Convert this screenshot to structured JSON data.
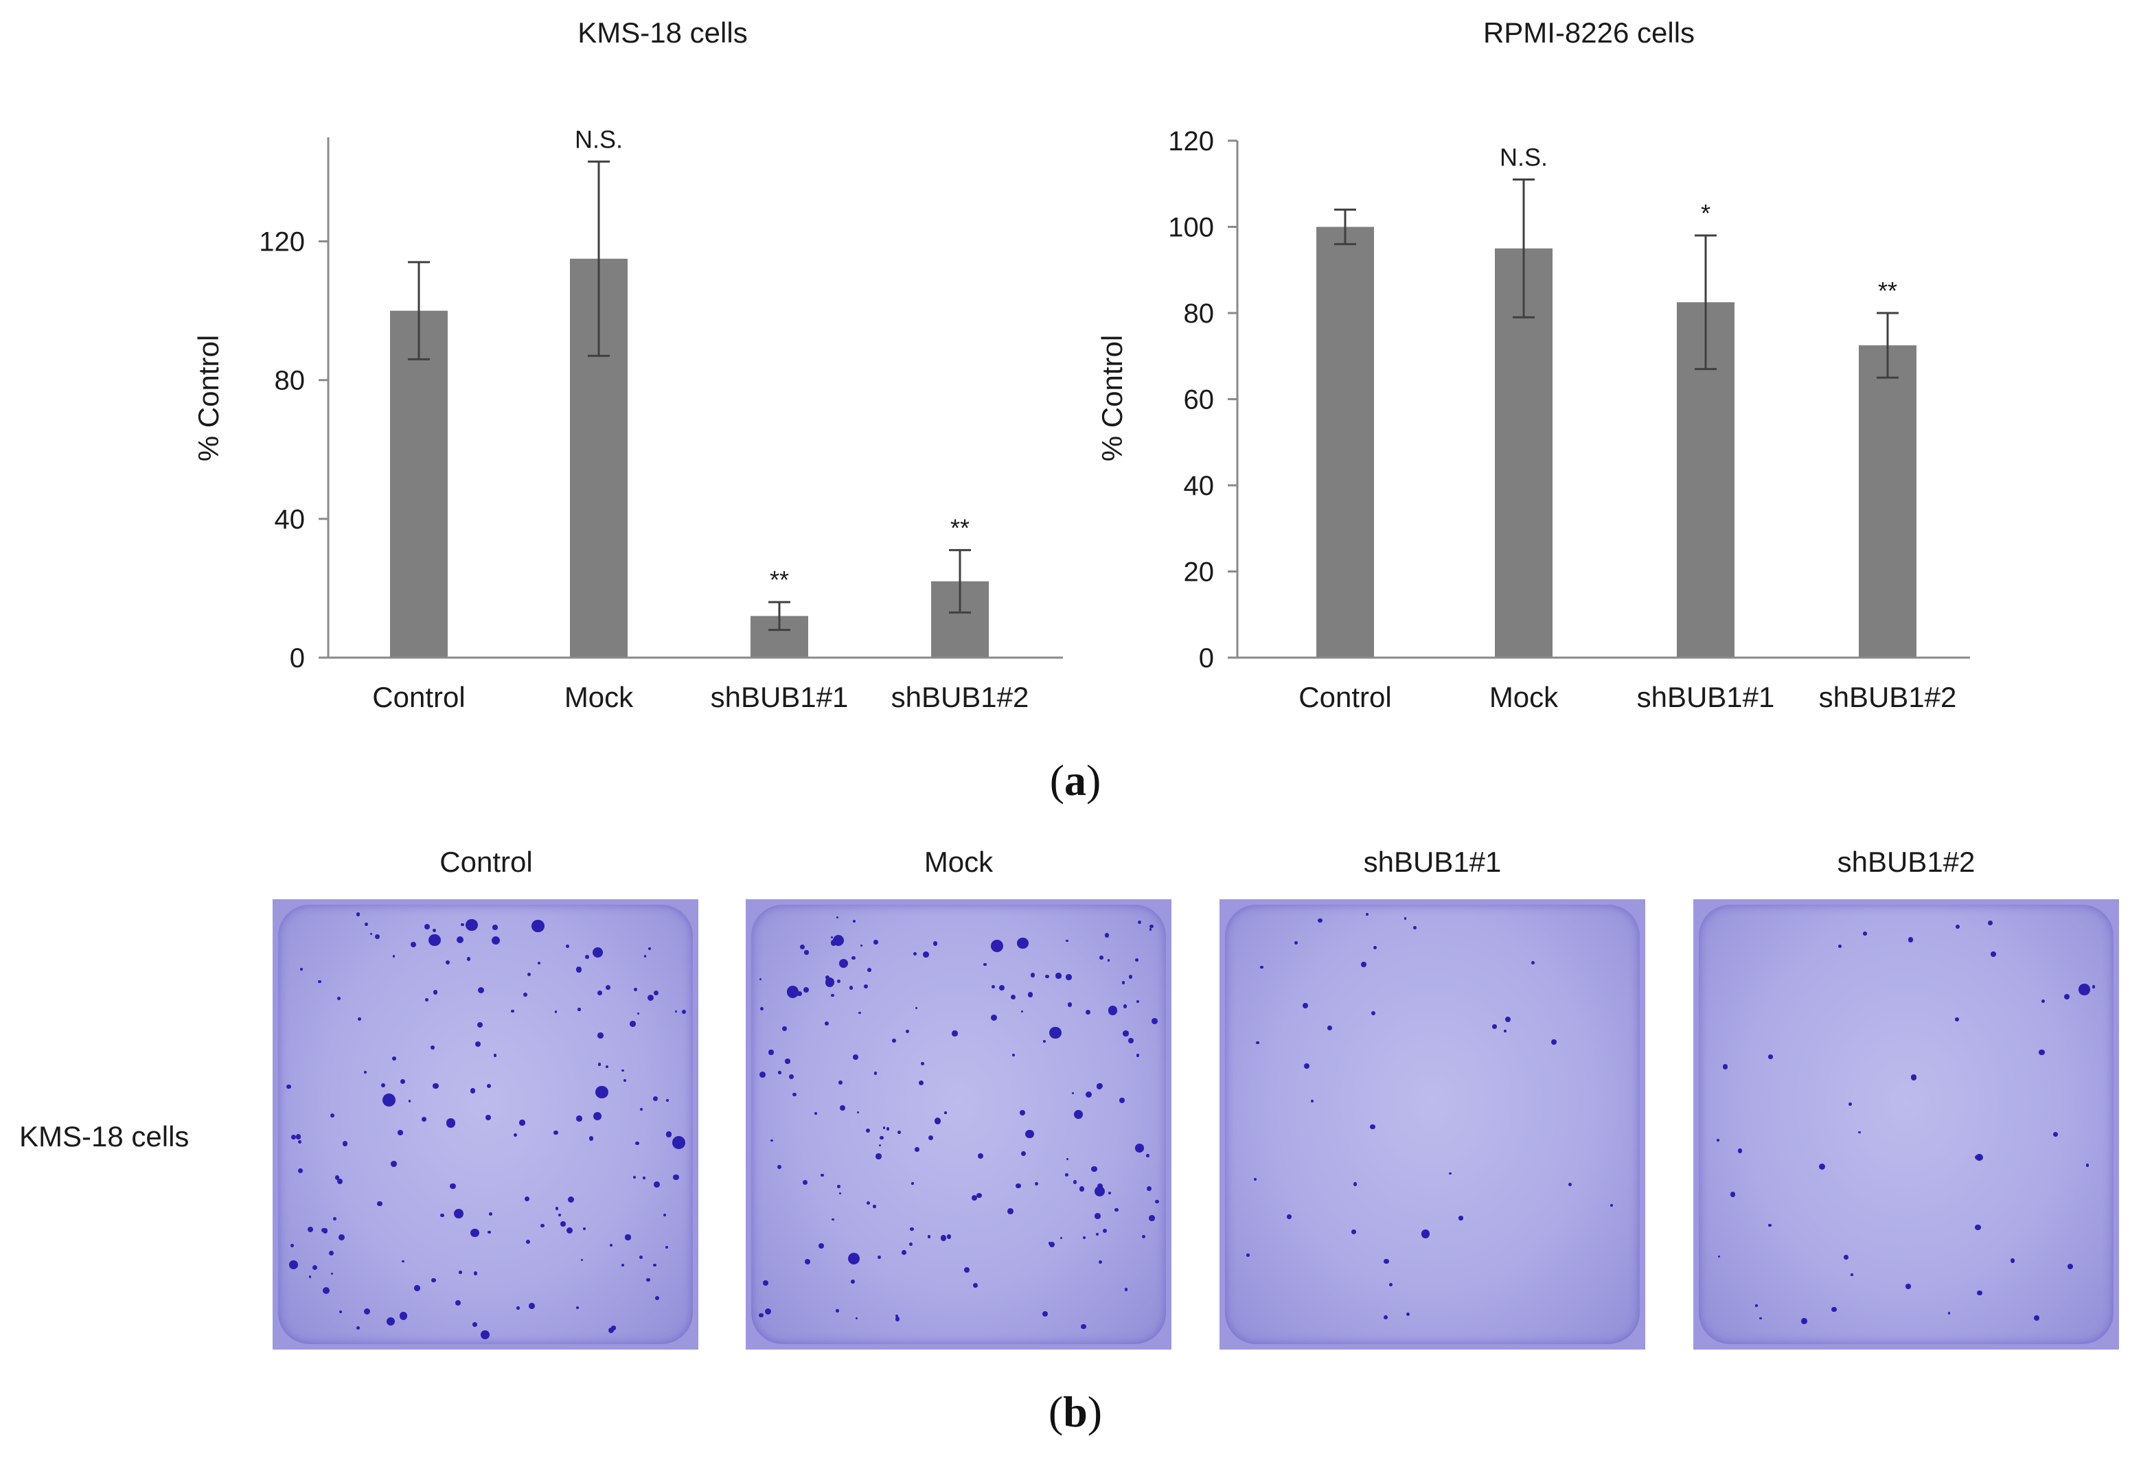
{
  "chart_data": [
    {
      "type": "bar",
      "title": "KMS-18 cells",
      "ylabel": "% Control",
      "categories": [
        "Control",
        "Mock",
        "shBUB1#1",
        "shBUB1#2"
      ],
      "values": [
        100,
        115,
        12,
        22
      ],
      "error": [
        14,
        28,
        4,
        9
      ],
      "annotations": [
        "",
        "N.S.",
        "**",
        "**"
      ],
      "ylim": [
        0,
        150
      ],
      "yticks": [
        0,
        40,
        80,
        120
      ],
      "color": "#7f7f7f",
      "grid": false
    },
    {
      "type": "bar",
      "title": "RPMI-8226 cells",
      "ylabel": "% Control",
      "categories": [
        "Control",
        "Mock",
        "shBUB1#1",
        "shBUB1#2"
      ],
      "values": [
        100,
        95,
        82.5,
        72.5
      ],
      "error": [
        4,
        16,
        15.5,
        7.5
      ],
      "annotations": [
        "",
        "N.S.",
        "*",
        "**"
      ],
      "ylim": [
        0,
        120
      ],
      "yticks": [
        0,
        20,
        40,
        60,
        80,
        100,
        120
      ],
      "color": "#7f7f7f",
      "grid": false
    }
  ],
  "panel_labels": {
    "a": "a",
    "b": "b"
  },
  "plates": {
    "row_label": "KMS-18 cells",
    "titles": [
      "Control",
      "Mock",
      "shBUB1#1",
      "shBUB1#2"
    ],
    "colors": {
      "plate": "#9d97de",
      "colony": "#2b1fb0"
    }
  }
}
